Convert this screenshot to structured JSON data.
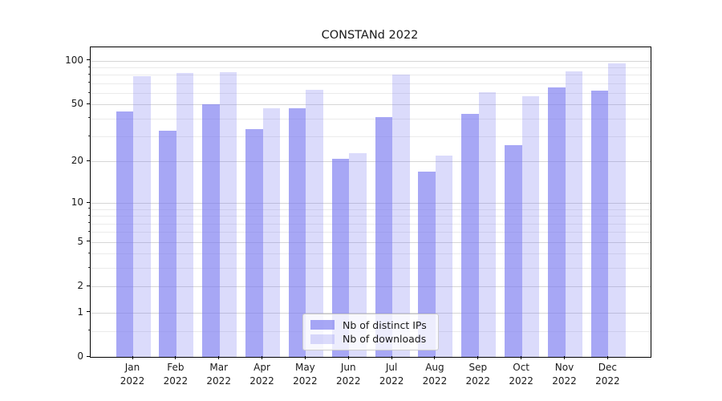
{
  "chart_data": {
    "type": "bar",
    "title": "CONSTANd 2022",
    "categories": [
      "Jan",
      "Feb",
      "Mar",
      "Apr",
      "May",
      "Jun",
      "Jul",
      "Aug",
      "Sep",
      "Oct",
      "Nov",
      "Dec"
    ],
    "x_year_label": "2022",
    "series": [
      {
        "name": "Nb of distinct IPs",
        "color": "rgba(121,121,240,0.66)",
        "values": [
          45,
          33,
          50,
          34,
          47,
          21,
          41,
          17,
          43,
          26,
          66,
          62
        ]
      },
      {
        "name": "Nb of downloads",
        "color": "rgba(121,121,240,0.27)",
        "values": [
          78,
          82,
          84,
          47,
          63,
          23,
          80,
          22,
          61,
          57,
          85,
          96
        ]
      }
    ],
    "yscale": "log(1+x)",
    "y_ticks": [
      100,
      50,
      20,
      10,
      5,
      2,
      1,
      0
    ],
    "y_minor_ticks": [
      0.5,
      3,
      4,
      6,
      7,
      8,
      9,
      30,
      40,
      60,
      70,
      80,
      90
    ],
    "ylim": [
      0,
      120
    ],
    "grid": "horizontal major+minor",
    "legend_position": "lower center",
    "colors": {
      "grid_major": "#d6d6d6",
      "grid_minor": "#ebebeb",
      "axis": "#000000",
      "text": "#1a1a1a"
    }
  }
}
